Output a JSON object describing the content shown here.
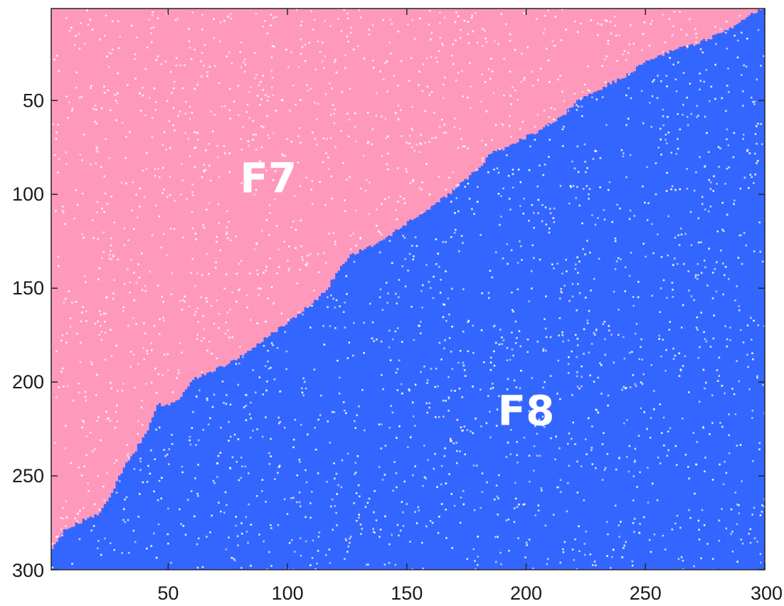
{
  "chart_data": {
    "type": "heatmap",
    "title": "",
    "xlabel": "",
    "ylabel": "",
    "xlim": [
      1,
      300
    ],
    "ylim": [
      1,
      300
    ],
    "y_reversed": true,
    "grid": false,
    "xticks": [
      50,
      100,
      150,
      200,
      250,
      300
    ],
    "xtick_labels": [
      "50",
      "100",
      "150",
      "200",
      "250",
      "300"
    ],
    "yticks": [
      50,
      100,
      150,
      200,
      250,
      300
    ],
    "ytick_labels": [
      "50",
      "100",
      "150",
      "200",
      "250",
      "300"
    ],
    "regions": [
      {
        "label": "F7",
        "color": "#ff99bb",
        "side": "upper-left",
        "label_position_data": [
          92,
          91
        ]
      },
      {
        "label": "F8",
        "color": "#3366ff",
        "side": "lower-right",
        "label_position_data": [
          200,
          215
        ]
      }
    ],
    "speckle_color": "#ffffff",
    "boundary": {
      "x": [
        1,
        5,
        12,
        20,
        25,
        30,
        35,
        40,
        45,
        50,
        55,
        60,
        65,
        70,
        75,
        80,
        90,
        100,
        110,
        115,
        120,
        125,
        130,
        140,
        150,
        160,
        170,
        180,
        185,
        190,
        200,
        205,
        210,
        215,
        220,
        225,
        230,
        240,
        250,
        260,
        270,
        280,
        290,
        295,
        300
      ],
      "y": [
        290,
        280,
        275,
        270,
        262,
        248,
        238,
        228,
        212,
        212,
        208,
        198,
        196,
        193,
        190,
        186,
        177,
        168,
        158,
        152,
        143,
        133,
        130,
        124,
        115,
        107,
        97,
        86,
        78,
        76,
        69,
        66,
        62,
        58,
        51,
        47,
        44,
        38,
        29,
        24,
        20,
        15,
        8,
        3,
        1
      ]
    }
  }
}
